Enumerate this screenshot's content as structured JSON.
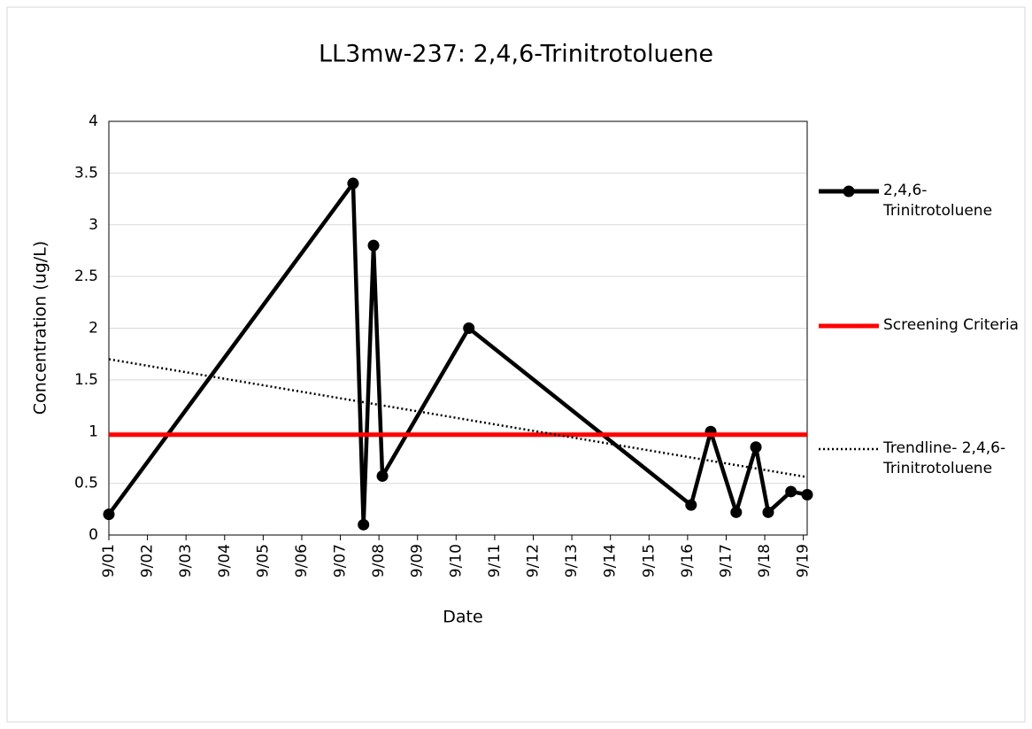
{
  "chart_data": {
    "type": "line",
    "title": "LL3mw-237: 2,4,6-Trinitrotoluene",
    "x_label": "Date",
    "y_label": "Concentration (ug/L)",
    "xlim": [
      1,
      19.1
    ],
    "xticks": [
      {
        "value": 1,
        "label": "9/01"
      },
      {
        "value": 2,
        "label": "9/02"
      },
      {
        "value": 3,
        "label": "9/03"
      },
      {
        "value": 4,
        "label": "9/04"
      },
      {
        "value": 5,
        "label": "9/05"
      },
      {
        "value": 6,
        "label": "9/06"
      },
      {
        "value": 7,
        "label": "9/07"
      },
      {
        "value": 8,
        "label": "9/08"
      },
      {
        "value": 9,
        "label": "9/09"
      },
      {
        "value": 10,
        "label": "9/10"
      },
      {
        "value": 11,
        "label": "9/11"
      },
      {
        "value": 12,
        "label": "9/12"
      },
      {
        "value": 13,
        "label": "9/13"
      },
      {
        "value": 14,
        "label": "9/14"
      },
      {
        "value": 15,
        "label": "9/15"
      },
      {
        "value": 16,
        "label": "9/16"
      },
      {
        "value": 17,
        "label": "9/17"
      },
      {
        "value": 18,
        "label": "9/18"
      },
      {
        "value": 19,
        "label": "9/19"
      }
    ],
    "ylim": [
      0,
      4
    ],
    "yticks": [
      0,
      0.5,
      1,
      1.5,
      2,
      2.5,
      3,
      3.5,
      4
    ],
    "grid": true,
    "legend": "right",
    "series": [
      {
        "name": "2,4,6-Trinitrotoluene",
        "color": "#000000",
        "style": "line-marker",
        "x": [
          1.0,
          7.33,
          7.6,
          7.86,
          8.09,
          10.33,
          16.09,
          16.6,
          17.26,
          17.77,
          18.09,
          18.68,
          19.1
        ],
        "values": [
          0.2,
          3.4,
          0.1,
          2.8,
          0.57,
          2.0,
          0.29,
          1.0,
          0.22,
          0.85,
          0.22,
          0.42,
          0.39
        ]
      },
      {
        "name": "Screening Criteria",
        "color": "#ff0000",
        "style": "line",
        "x": [
          1,
          19.1
        ],
        "values": [
          0.97,
          0.97
        ]
      },
      {
        "name": "Trendline- 2,4,6-Trinitrotoluene",
        "color": "#000000",
        "style": "dotted",
        "x": [
          1,
          19.1
        ],
        "values": [
          1.7,
          0.56
        ]
      }
    ]
  }
}
